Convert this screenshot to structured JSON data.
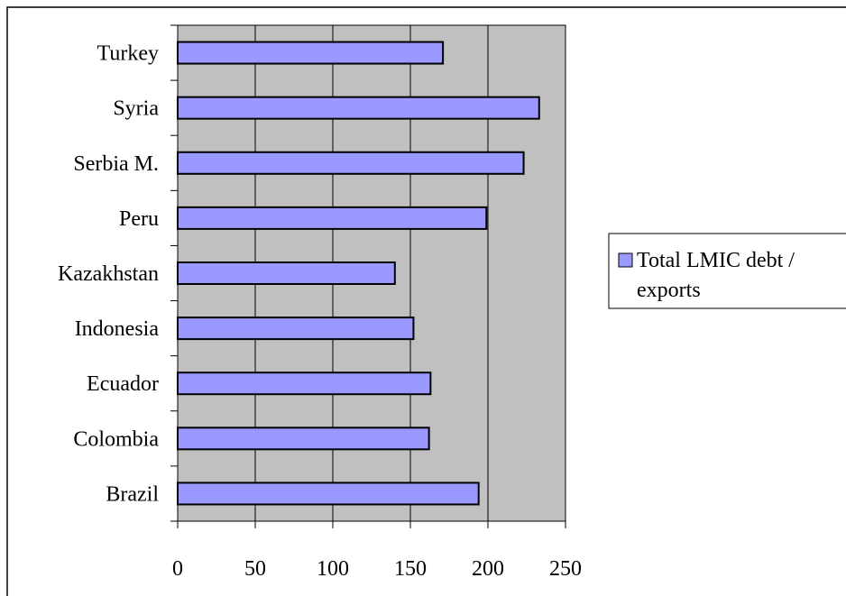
{
  "colors": {
    "plot_background": "#c0c0c0",
    "bar_fill": "#9999ff",
    "bar_stroke": "#000000",
    "gridline": "#000000"
  },
  "chart_data": {
    "type": "bar",
    "orientation": "horizontal",
    "categories": [
      "Turkey",
      "Syria",
      "Serbia M.",
      "Peru",
      "Kazakhstan",
      "Indonesia",
      "Ecuador",
      "Colombia",
      "Brazil"
    ],
    "series": [
      {
        "name": "Total LMIC debt / exports",
        "legend_lines": [
          "Total LMIC debt /",
          "exports"
        ],
        "values": [
          171,
          233,
          223,
          199,
          140,
          152,
          163,
          162,
          194
        ]
      }
    ],
    "xlim": [
      0,
      250
    ],
    "xticks": [
      0,
      50,
      100,
      150,
      200,
      250
    ],
    "grid": "vertical major gridlines",
    "legend_position": "right",
    "title": "",
    "xlabel": "",
    "ylabel": ""
  }
}
